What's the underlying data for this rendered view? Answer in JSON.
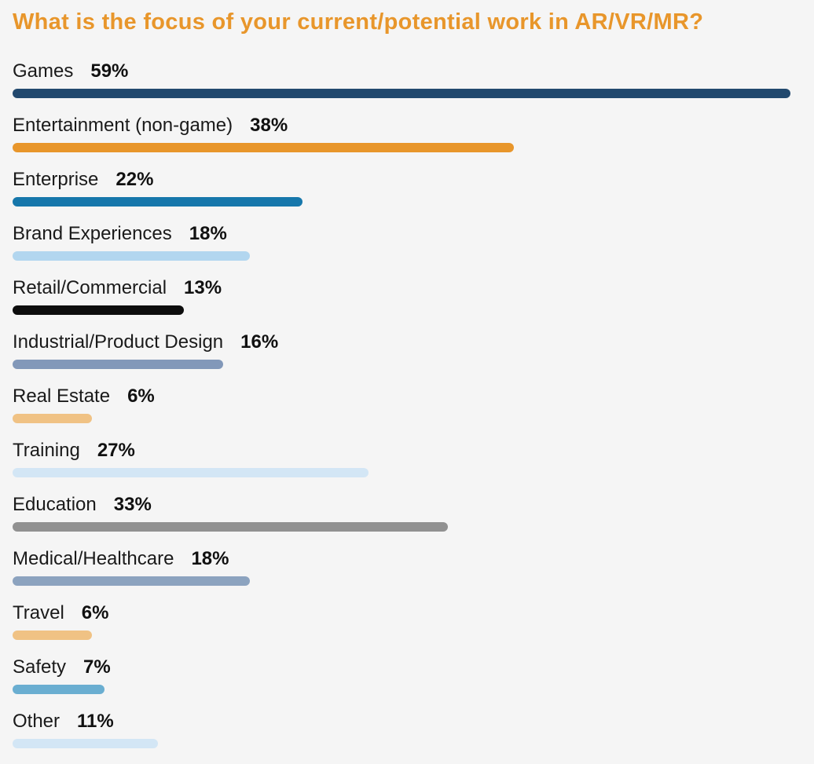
{
  "chart_data": {
    "type": "bar",
    "orientation": "horizontal",
    "title": "What is the focus of your current/potential work in AR/VR/MR?",
    "categories": [
      "Games",
      "Entertainment (non-game)",
      "Enterprise",
      "Brand Experiences",
      "Retail/Commercial",
      "Industrial/Product Design",
      "Real Estate",
      "Training",
      "Education",
      "Medical/Healthcare",
      "Travel",
      "Safety",
      "Other"
    ],
    "values": [
      59,
      38,
      22,
      18,
      13,
      16,
      6,
      27,
      33,
      18,
      6,
      7,
      11
    ],
    "value_labels": [
      "59%",
      "38%",
      "22%",
      "18%",
      "13%",
      "16%",
      "6%",
      "27%",
      "33%",
      "18%",
      "6%",
      "7%",
      "11%"
    ],
    "bar_colors": [
      "#22496e",
      "#e8962b",
      "#1677ab",
      "#b2d6ef",
      "#0d0d0d",
      "#8298b9",
      "#f0c284",
      "#d3e6f5",
      "#919191",
      "#8ca3bf",
      "#f0c284",
      "#6aaed1",
      "#d3e6f5"
    ],
    "xlim": [
      0,
      59
    ],
    "grid": false,
    "legend": "none",
    "title_color": "#e8962b"
  }
}
